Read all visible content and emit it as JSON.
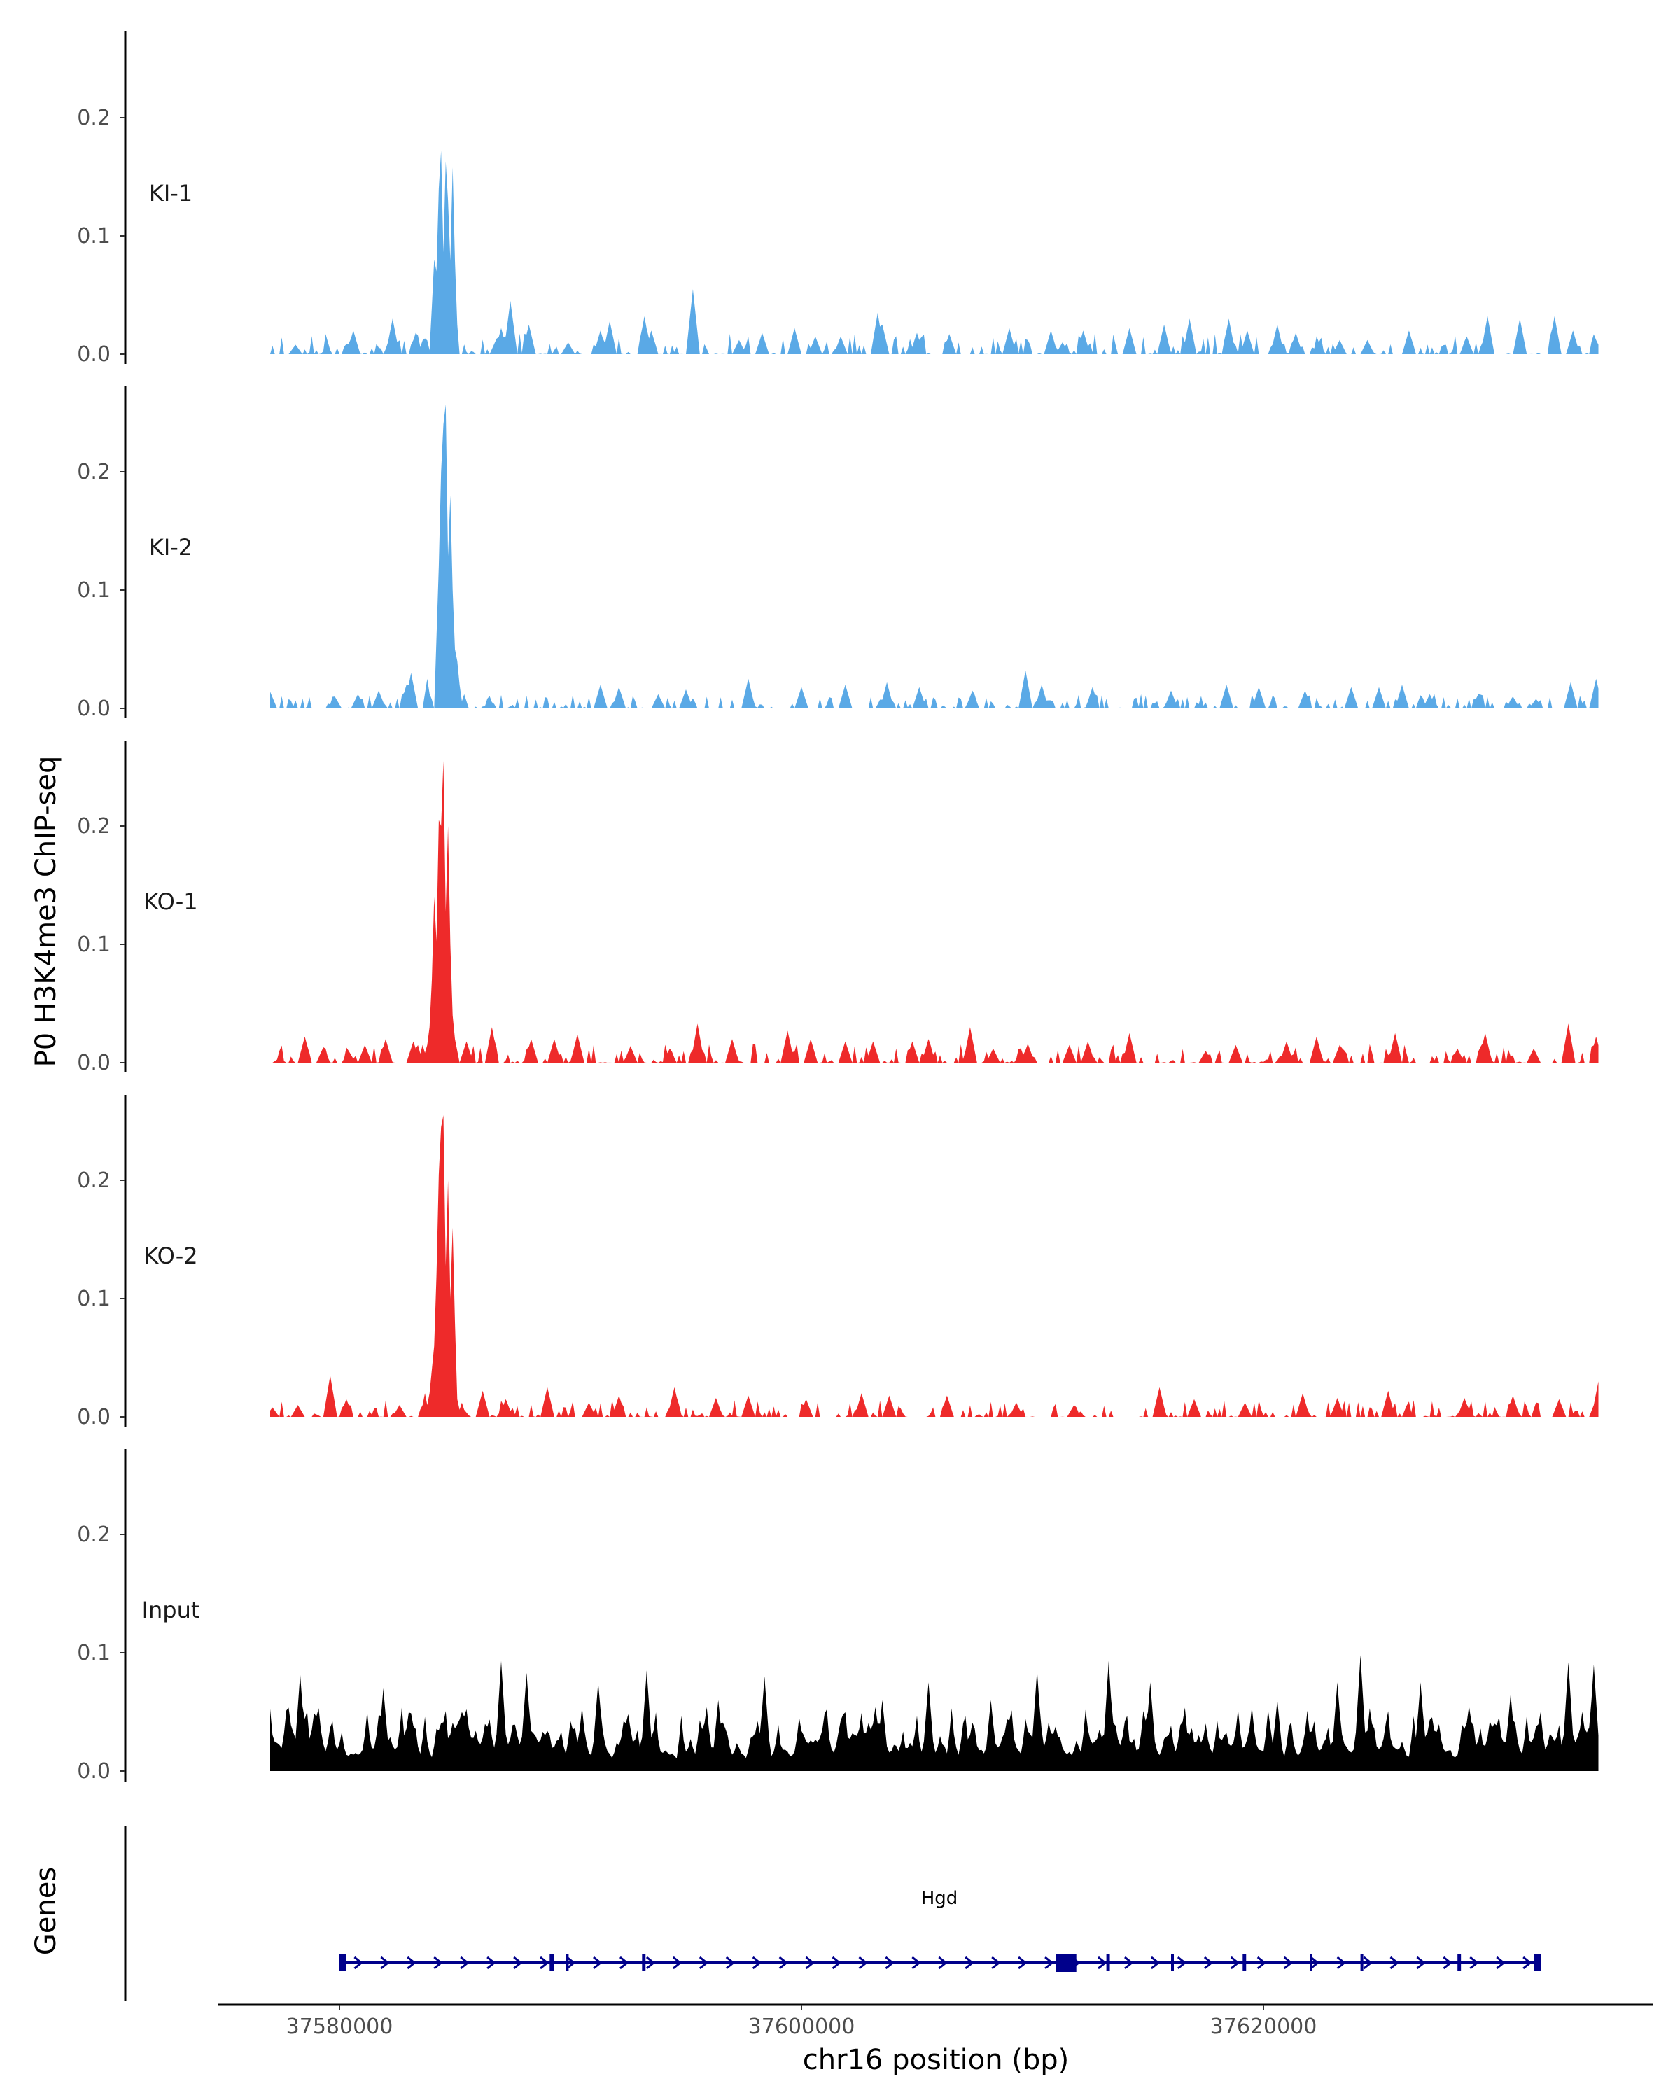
{
  "chart_data": {
    "type": "area",
    "title": "",
    "ylabel": "P0 H3K4me3 ChIP-seq",
    "xlabel": "chr16 position (bp)",
    "genes_axis_label": "Genes",
    "xlim": [
      37573000,
      37635000
    ],
    "ylim": [
      0,
      0.27
    ],
    "x_ticks": [
      37580000,
      37600000,
      37620000
    ],
    "x_tick_labels": [
      "37580000",
      "37600000",
      "37620000"
    ],
    "y_ticks": [
      0,
      0.1,
      0.2
    ],
    "y_tick_labels": [
      "0.0",
      "0.1",
      "0.2"
    ],
    "track_range_bp": [
      37577000,
      37634500
    ],
    "tracks": [
      {
        "name": "KI-1",
        "color": "#5aa9e6",
        "peaks": [
          [
            37584100,
            0.08
          ],
          [
            37584300,
            0.14
          ],
          [
            37584420,
            0.172
          ],
          [
            37584560,
            0.163
          ],
          [
            37584700,
            0.13
          ],
          [
            37584850,
            0.158
          ],
          [
            37585000,
            0.05
          ]
        ],
        "spikes": [
          [
            37578050,
            0.008
          ],
          [
            37580600,
            0.02
          ],
          [
            37582300,
            0.03
          ],
          [
            37583300,
            0.018
          ],
          [
            37586800,
            0.013
          ],
          [
            37587000,
            0.022
          ],
          [
            37587400,
            0.045
          ],
          [
            37588200,
            0.025
          ],
          [
            37589900,
            0.01
          ],
          [
            37591300,
            0.02
          ],
          [
            37591700,
            0.028
          ],
          [
            37593200,
            0.032
          ],
          [
            37593500,
            0.02
          ],
          [
            37595300,
            0.055
          ],
          [
            37597300,
            0.012
          ],
          [
            37598300,
            0.018
          ],
          [
            37599700,
            0.022
          ],
          [
            37600600,
            0.015
          ],
          [
            37601700,
            0.015
          ],
          [
            37603500,
            0.025
          ],
          [
            37603300,
            0.035
          ],
          [
            37605000,
            0.018
          ],
          [
            37606400,
            0.017
          ],
          [
            37609000,
            0.022
          ],
          [
            37610800,
            0.02
          ],
          [
            37611300,
            0.01
          ],
          [
            37612200,
            0.02
          ],
          [
            37614200,
            0.022
          ],
          [
            37615700,
            0.025
          ],
          [
            37616800,
            0.03
          ],
          [
            37618500,
            0.03
          ],
          [
            37619300,
            0.02
          ],
          [
            37620600,
            0.025
          ],
          [
            37621400,
            0.018
          ],
          [
            37622400,
            0.01
          ],
          [
            37623300,
            0.012
          ],
          [
            37624500,
            0.012
          ],
          [
            37626300,
            0.02
          ],
          [
            37628800,
            0.015
          ],
          [
            37629700,
            0.032
          ],
          [
            37631100,
            0.03
          ],
          [
            37632600,
            0.032
          ],
          [
            37633400,
            0.02
          ],
          [
            37634400,
            0.012
          ]
        ],
        "noise": {
          "density": 0.65,
          "max": 0.018
        }
      },
      {
        "name": "KI-2",
        "color": "#5aa9e6",
        "peaks": [
          [
            37583800,
            0.025
          ],
          [
            37584250,
            0.12
          ],
          [
            37584420,
            0.2
          ],
          [
            37584540,
            0.24
          ],
          [
            37584620,
            0.257
          ],
          [
            37584760,
            0.18
          ],
          [
            37584900,
            0.1
          ],
          [
            37585100,
            0.04
          ],
          [
            37585400,
            0.012
          ]
        ],
        "spikes": [
          [
            37577020,
            0.014
          ],
          [
            37579800,
            0.01
          ],
          [
            37580800,
            0.012
          ],
          [
            37581700,
            0.015
          ],
          [
            37582900,
            0.02
          ],
          [
            37583100,
            0.03
          ],
          [
            37591300,
            0.02
          ],
          [
            37592100,
            0.018
          ],
          [
            37593800,
            0.012
          ],
          [
            37595000,
            0.016
          ],
          [
            37597700,
            0.025
          ],
          [
            37600000,
            0.018
          ],
          [
            37601900,
            0.02
          ],
          [
            37603700,
            0.022
          ],
          [
            37605100,
            0.018
          ],
          [
            37607400,
            0.015
          ],
          [
            37609700,
            0.032
          ],
          [
            37610400,
            0.02
          ],
          [
            37612600,
            0.018
          ],
          [
            37616000,
            0.015
          ],
          [
            37618400,
            0.02
          ],
          [
            37619800,
            0.018
          ],
          [
            37621800,
            0.015
          ],
          [
            37623800,
            0.018
          ],
          [
            37625000,
            0.018
          ],
          [
            37626000,
            0.02
          ],
          [
            37627200,
            0.012
          ],
          [
            37629300,
            0.012
          ],
          [
            37630800,
            0.01
          ],
          [
            37631800,
            0.008
          ],
          [
            37633300,
            0.022
          ],
          [
            37634400,
            0.025
          ]
        ],
        "noise": {
          "density": 0.75,
          "max": 0.012
        }
      },
      {
        "name": "KO-1",
        "color": "#ee2a2a",
        "peaks": [
          [
            37583600,
            0.015
          ],
          [
            37583900,
            0.03
          ],
          [
            37584100,
            0.14
          ],
          [
            37584260,
            0.205
          ],
          [
            37584400,
            0.2
          ],
          [
            37584520,
            0.255
          ],
          [
            37584650,
            0.2
          ],
          [
            37584800,
            0.08
          ],
          [
            37585000,
            0.02
          ]
        ],
        "spikes": [
          [
            37577400,
            0.004
          ],
          [
            37578500,
            0.022
          ],
          [
            37579300,
            0.013
          ],
          [
            37580400,
            0.01
          ],
          [
            37581100,
            0.015
          ],
          [
            37582000,
            0.02
          ],
          [
            37583200,
            0.018
          ],
          [
            37585500,
            0.018
          ],
          [
            37586600,
            0.03
          ],
          [
            37588300,
            0.02
          ],
          [
            37589300,
            0.02
          ],
          [
            37590300,
            0.024
          ],
          [
            37592600,
            0.014
          ],
          [
            37594300,
            0.012
          ],
          [
            37595500,
            0.033
          ],
          [
            37597000,
            0.02
          ],
          [
            37599400,
            0.027
          ],
          [
            37600400,
            0.02
          ],
          [
            37601900,
            0.018
          ],
          [
            37603100,
            0.018
          ],
          [
            37604800,
            0.018
          ],
          [
            37605500,
            0.02
          ],
          [
            37607300,
            0.03
          ],
          [
            37608300,
            0.012
          ],
          [
            37609800,
            0.016
          ],
          [
            37611600,
            0.015
          ],
          [
            37612400,
            0.018
          ],
          [
            37614200,
            0.025
          ],
          [
            37617500,
            0.01
          ],
          [
            37618800,
            0.015
          ],
          [
            37621000,
            0.018
          ],
          [
            37622300,
            0.022
          ],
          [
            37623300,
            0.015
          ],
          [
            37625700,
            0.025
          ],
          [
            37628400,
            0.012
          ],
          [
            37629600,
            0.025
          ],
          [
            37631700,
            0.012
          ],
          [
            37633200,
            0.033
          ],
          [
            37634400,
            0.022
          ]
        ],
        "noise": {
          "density": 0.7,
          "max": 0.016
        }
      },
      {
        "name": "KO-2",
        "color": "#ee2a2a",
        "peaks": [
          [
            37583700,
            0.02
          ],
          [
            37584000,
            0.04
          ],
          [
            37584150,
            0.12
          ],
          [
            37584320,
            0.205
          ],
          [
            37584420,
            0.245
          ],
          [
            37584540,
            0.255
          ],
          [
            37584700,
            0.2
          ],
          [
            37584850,
            0.16
          ],
          [
            37585000,
            0.03
          ],
          [
            37585300,
            0.012
          ]
        ],
        "spikes": [
          [
            37577100,
            0.008
          ],
          [
            37578200,
            0.01
          ],
          [
            37579600,
            0.035
          ],
          [
            37580300,
            0.015
          ],
          [
            37582600,
            0.01
          ],
          [
            37586200,
            0.022
          ],
          [
            37587200,
            0.015
          ],
          [
            37589000,
            0.025
          ],
          [
            37590800,
            0.012
          ],
          [
            37592100,
            0.018
          ],
          [
            37594500,
            0.025
          ],
          [
            37596300,
            0.016
          ],
          [
            37597700,
            0.018
          ],
          [
            37600200,
            0.015
          ],
          [
            37602600,
            0.02
          ],
          [
            37603800,
            0.018
          ],
          [
            37606300,
            0.018
          ],
          [
            37609300,
            0.012
          ],
          [
            37611800,
            0.01
          ],
          [
            37615500,
            0.025
          ],
          [
            37617000,
            0.015
          ],
          [
            37619200,
            0.012
          ],
          [
            37621700,
            0.02
          ],
          [
            37623200,
            0.016
          ],
          [
            37625400,
            0.022
          ],
          [
            37628700,
            0.016
          ],
          [
            37630800,
            0.018
          ],
          [
            37632800,
            0.015
          ],
          [
            37634500,
            0.03
          ]
        ],
        "noise": {
          "density": 0.7,
          "max": 0.014
        }
      },
      {
        "name": "Input",
        "color": "#000000",
        "peaks": [],
        "spikes": [
          [
            37578300,
            0.082
          ],
          [
            37581900,
            0.07
          ],
          [
            37587000,
            0.093
          ],
          [
            37588100,
            0.083
          ],
          [
            37591200,
            0.075
          ],
          [
            37593300,
            0.085
          ],
          [
            37596400,
            0.06
          ],
          [
            37598400,
            0.08
          ],
          [
            37603500,
            0.06
          ],
          [
            37605500,
            0.075
          ],
          [
            37608200,
            0.06
          ],
          [
            37610200,
            0.085
          ],
          [
            37613300,
            0.093
          ],
          [
            37615100,
            0.075
          ],
          [
            37620600,
            0.06
          ],
          [
            37623200,
            0.075
          ],
          [
            37624200,
            0.098
          ],
          [
            37626800,
            0.075
          ],
          [
            37630700,
            0.065
          ],
          [
            37633200,
            0.092
          ],
          [
            37634300,
            0.09
          ]
        ],
        "noise": {
          "density": 1.0,
          "max": 0.055,
          "min": 0.01
        }
      }
    ],
    "gene": {
      "name": "Hgd",
      "start": 37580000,
      "end": 37632000,
      "strand": "+",
      "color": "#00008b",
      "exons": [
        [
          37580000,
          37580300
        ],
        [
          37589100,
          37589300
        ],
        [
          37589800,
          37589900
        ],
        [
          37593100,
          37593250
        ],
        [
          37611000,
          37611900
        ],
        [
          37613200,
          37613350
        ],
        [
          37616000,
          37616100
        ],
        [
          37619100,
          37619250
        ],
        [
          37622000,
          37622100
        ],
        [
          37624200,
          37624300
        ],
        [
          37628400,
          37628550
        ],
        [
          37631700,
          37632000
        ]
      ]
    }
  }
}
